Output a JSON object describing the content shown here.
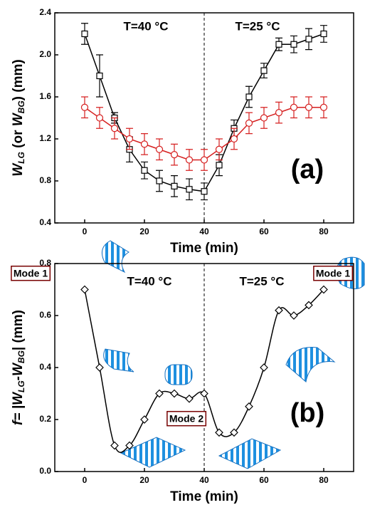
{
  "chart_data": [
    {
      "type": "line",
      "ylabel": [
        "W",
        "LG",
        " (or ",
        "W",
        "BG",
        ") (mm)"
      ],
      "xlabel": "Time (min)",
      "x": [
        0,
        5,
        10,
        15,
        20,
        25,
        30,
        35,
        40,
        45,
        50,
        55,
        60,
        65,
        70,
        75,
        80
      ],
      "series": [
        {
          "color": "#000000",
          "marker": "square",
          "values": [
            2.2,
            1.8,
            1.4,
            1.1,
            0.9,
            0.8,
            0.75,
            0.72,
            0.7,
            0.95,
            1.3,
            1.6,
            1.85,
            2.1,
            2.1,
            2.15,
            2.2
          ],
          "errors": [
            0.1,
            0.2,
            0.05,
            0.12,
            0.08,
            0.1,
            0.1,
            0.1,
            0.08,
            0.1,
            0.08,
            0.1,
            0.07,
            0.06,
            0.08,
            0.1,
            0.08
          ]
        },
        {
          "color": "#d62020",
          "marker": "circle",
          "values": [
            1.5,
            1.4,
            1.3,
            1.2,
            1.15,
            1.1,
            1.05,
            1.0,
            1.0,
            1.1,
            1.2,
            1.35,
            1.4,
            1.45,
            1.5,
            1.5,
            1.5
          ],
          "errors": [
            0.1,
            0.1,
            0.1,
            0.1,
            0.1,
            0.1,
            0.1,
            0.1,
            0.1,
            0.1,
            0.1,
            0.1,
            0.1,
            0.1,
            0.1,
            0.1,
            0.1
          ]
        }
      ],
      "xlim": [
        -10,
        90
      ],
      "xticks": [
        0,
        20,
        40,
        60,
        80
      ],
      "ylim": [
        0.4,
        2.4
      ],
      "yticks": [
        0.4,
        0.8,
        1.2,
        1.6,
        {
          "value": 2,
          "label": "2.0"
        },
        2.4
      ],
      "vline": 40,
      "annotations": [
        "T=40 °C",
        "T=25 °C",
        "(a)"
      ]
    },
    {
      "type": "line",
      "smooth": true,
      "ylabel": [
        "f= |W",
        "LG",
        "-W",
        "BG",
        "| (mm)"
      ],
      "xlabel": "Time (min)",
      "x": [
        0,
        5,
        10,
        15,
        20,
        25,
        30,
        35,
        40,
        45,
        50,
        55,
        60,
        65,
        70,
        75,
        80
      ],
      "series": [
        {
          "color": "#000000",
          "marker": "diamond",
          "values": [
            0.7,
            0.4,
            0.1,
            0.1,
            0.2,
            0.3,
            0.3,
            0.28,
            0.3,
            0.15,
            0.15,
            0.25,
            0.4,
            0.62,
            0.6,
            0.64,
            0.7
          ]
        }
      ],
      "xlim": [
        -10,
        90
      ],
      "xticks": [
        0,
        20,
        40,
        60,
        80
      ],
      "ylim": [
        0,
        0.8
      ],
      "yticks": [
        {
          "value": 0,
          "label": "0.0"
        },
        0.2,
        0.4,
        0.6,
        0.8
      ],
      "vline": 40,
      "annotations": [
        "Mode 1",
        "T=40 °C",
        "T=25 °C",
        "Mode 1",
        "Mode 2",
        "(b)"
      ]
    }
  ]
}
